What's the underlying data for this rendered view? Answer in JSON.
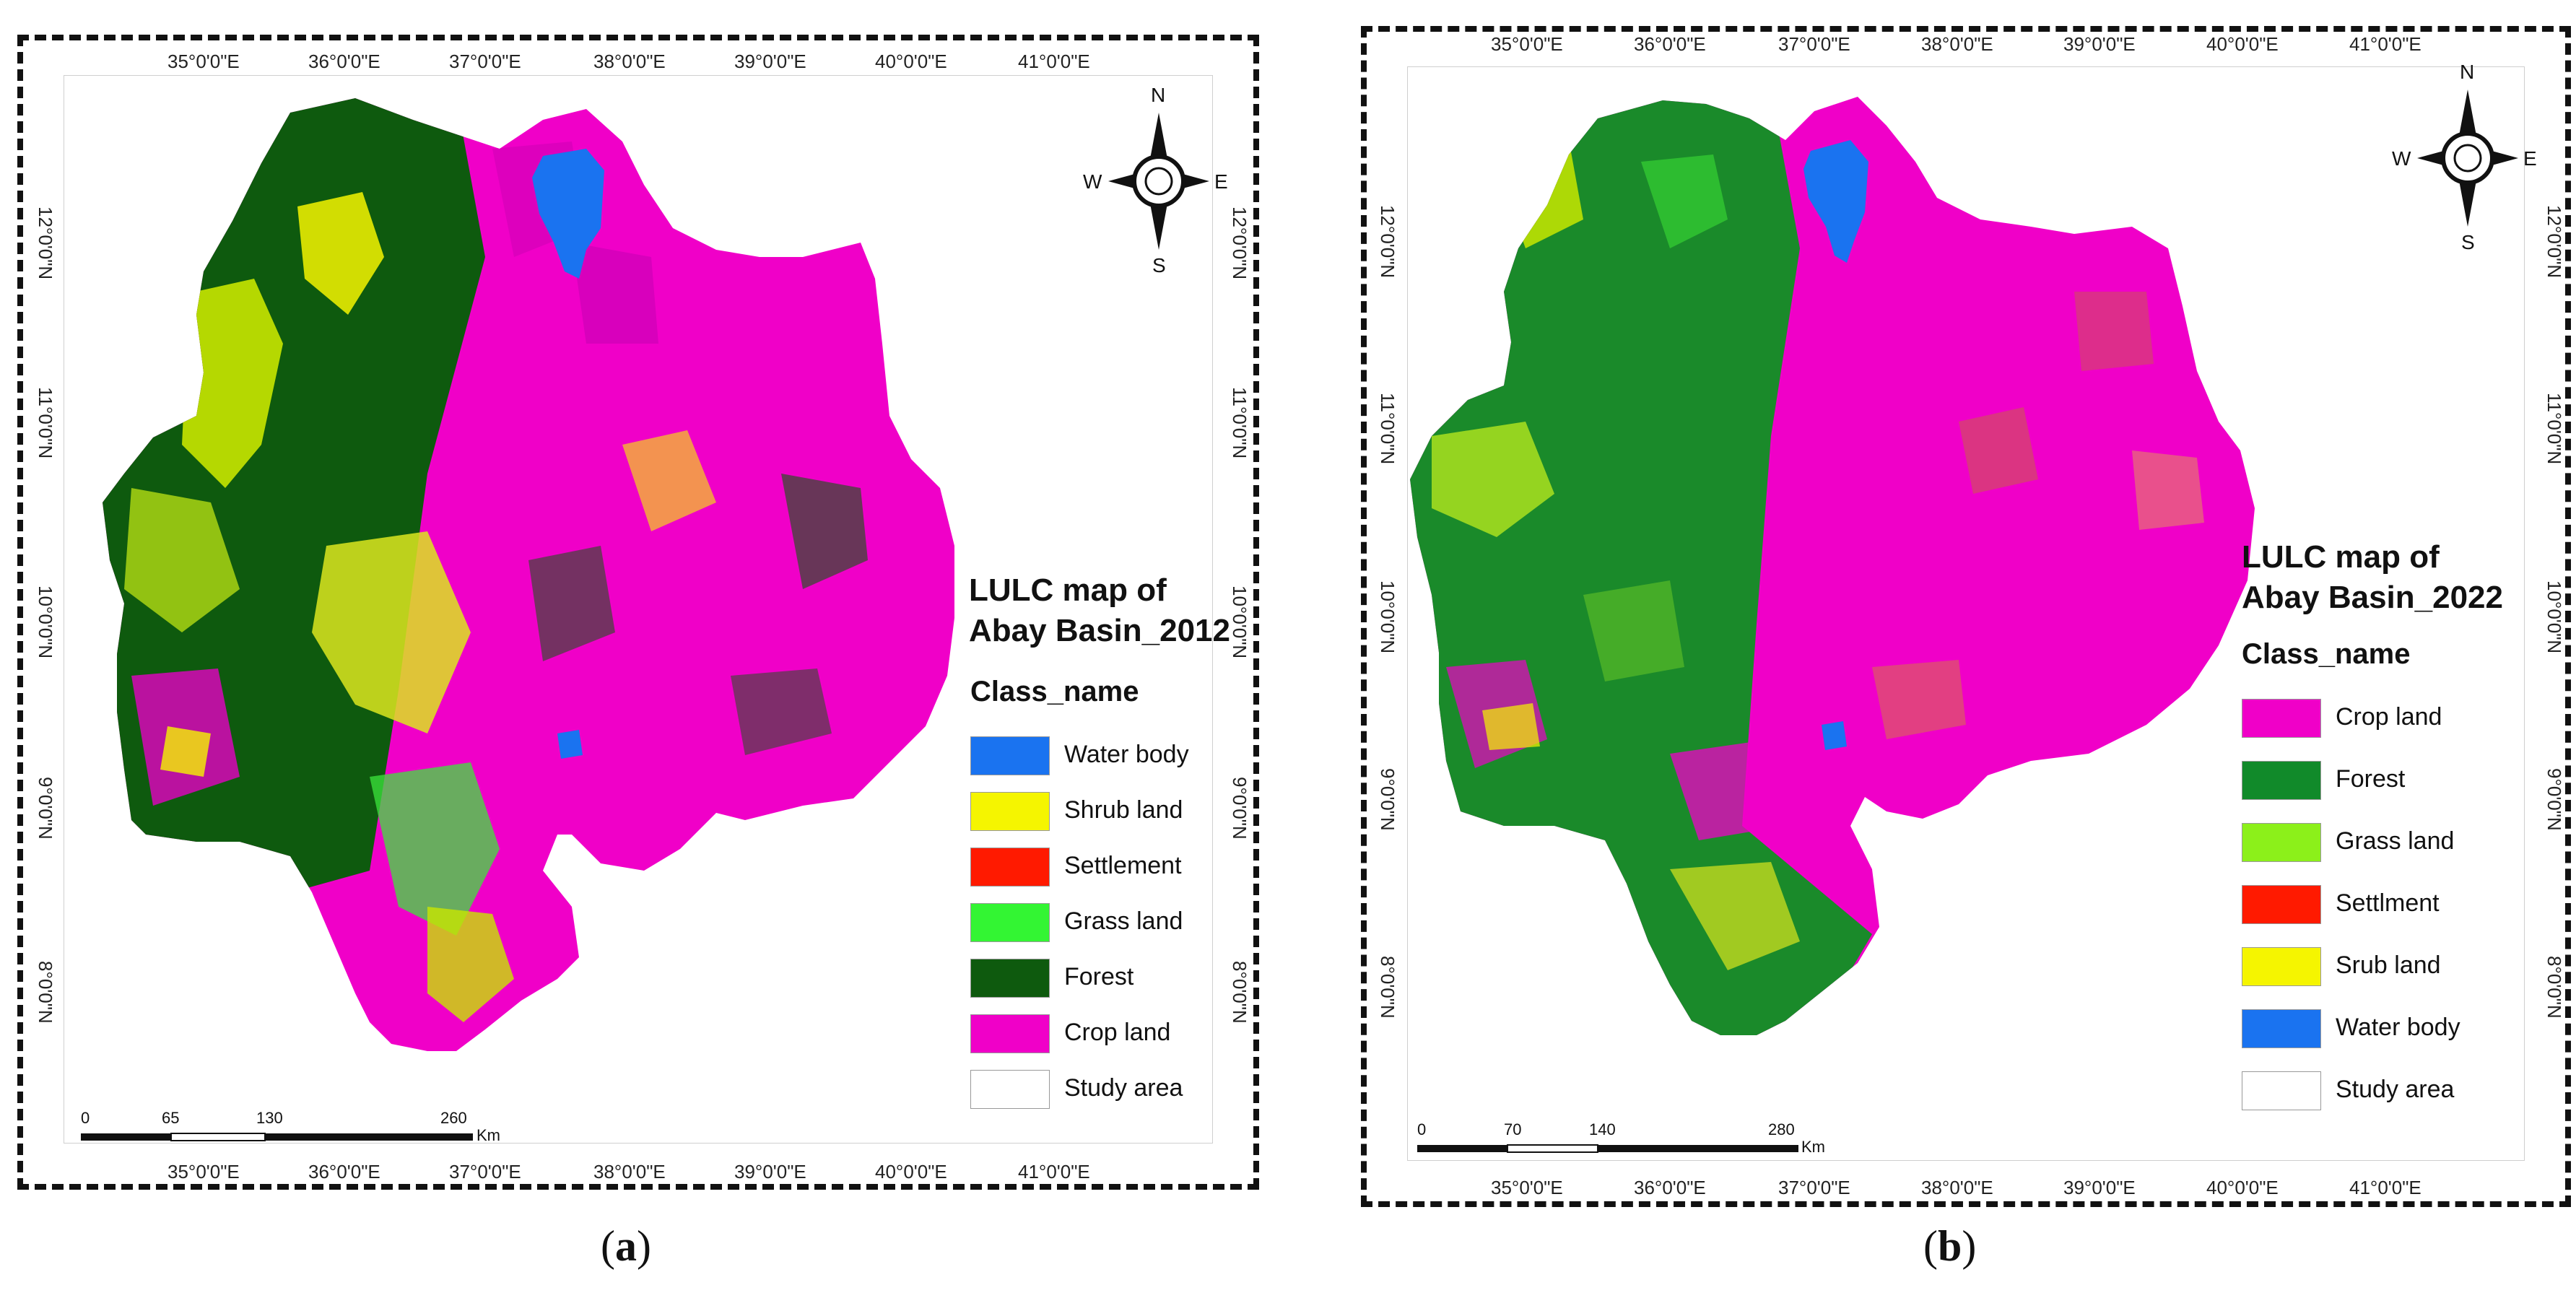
{
  "figure": {
    "panels": [
      {
        "caption_open": "(",
        "caption_letter": "a",
        "caption_close": ")",
        "legend_title_line1": "LULC map of",
        "legend_title_line2": "Abay Basin_2012",
        "class_heading": "Class_name",
        "legend": [
          {
            "label": "Water body",
            "color": "#1a73f0"
          },
          {
            "label": "Shrub land",
            "color": "#f5f500"
          },
          {
            "label": "Settlement",
            "color": "#ff1a00"
          },
          {
            "label": "Grass land",
            "color": "#33f533"
          },
          {
            "label": "Forest",
            "color": "#0e5a0e"
          },
          {
            "label": "Crop land",
            "color": "#f000c8"
          },
          {
            "label": "Study area",
            "color": "#ffffff"
          }
        ],
        "lon_ticks": [
          "35°0'0\"E",
          "36°0'0\"E",
          "37°0'0\"E",
          "38°0'0\"E",
          "39°0'0\"E",
          "40°0'0\"E",
          "41°0'0\"E"
        ],
        "lat_ticks": [
          "12°0'0\"N",
          "11°0'0\"N",
          "10°0'0\"N",
          "9°0'0\"N",
          "8°0'0\"N"
        ],
        "scale_labels": [
          "0",
          "65",
          "130",
          "260"
        ],
        "scale_unit": "Km",
        "compass": {
          "n": "N",
          "s": "S",
          "e": "E",
          "w": "W"
        }
      },
      {
        "caption_open": "(",
        "caption_letter": "b",
        "caption_close": ")",
        "legend_title_line1": "LULC map of",
        "legend_title_line2": "Abay Basin_2022",
        "class_heading": "Class_name",
        "legend": [
          {
            "label": "Crop land",
            "color": "#f000c8"
          },
          {
            "label": "Forest",
            "color": "#118a2a"
          },
          {
            "label": "Grass land",
            "color": "#8cf01a"
          },
          {
            "label": "Settlment",
            "color": "#ff1a00"
          },
          {
            "label": "Srub land",
            "color": "#f5f500"
          },
          {
            "label": "Water body",
            "color": "#1a73f0"
          },
          {
            "label": "Study area",
            "color": "#ffffff"
          }
        ],
        "lon_ticks": [
          "35°0'0\"E",
          "36°0'0\"E",
          "37°0'0\"E",
          "38°0'0\"E",
          "39°0'0\"E",
          "40°0'0\"E",
          "41°0'0\"E"
        ],
        "lat_ticks": [
          "12°0'0\"N",
          "11°0'0\"N",
          "10°0'0\"N",
          "9°0'0\"N",
          "8°0'0\"N"
        ],
        "scale_labels": [
          "0",
          "70",
          "140",
          "280"
        ],
        "scale_unit": "Km",
        "compass": {
          "n": "N",
          "s": "S",
          "e": "E",
          "w": "W"
        }
      }
    ]
  }
}
